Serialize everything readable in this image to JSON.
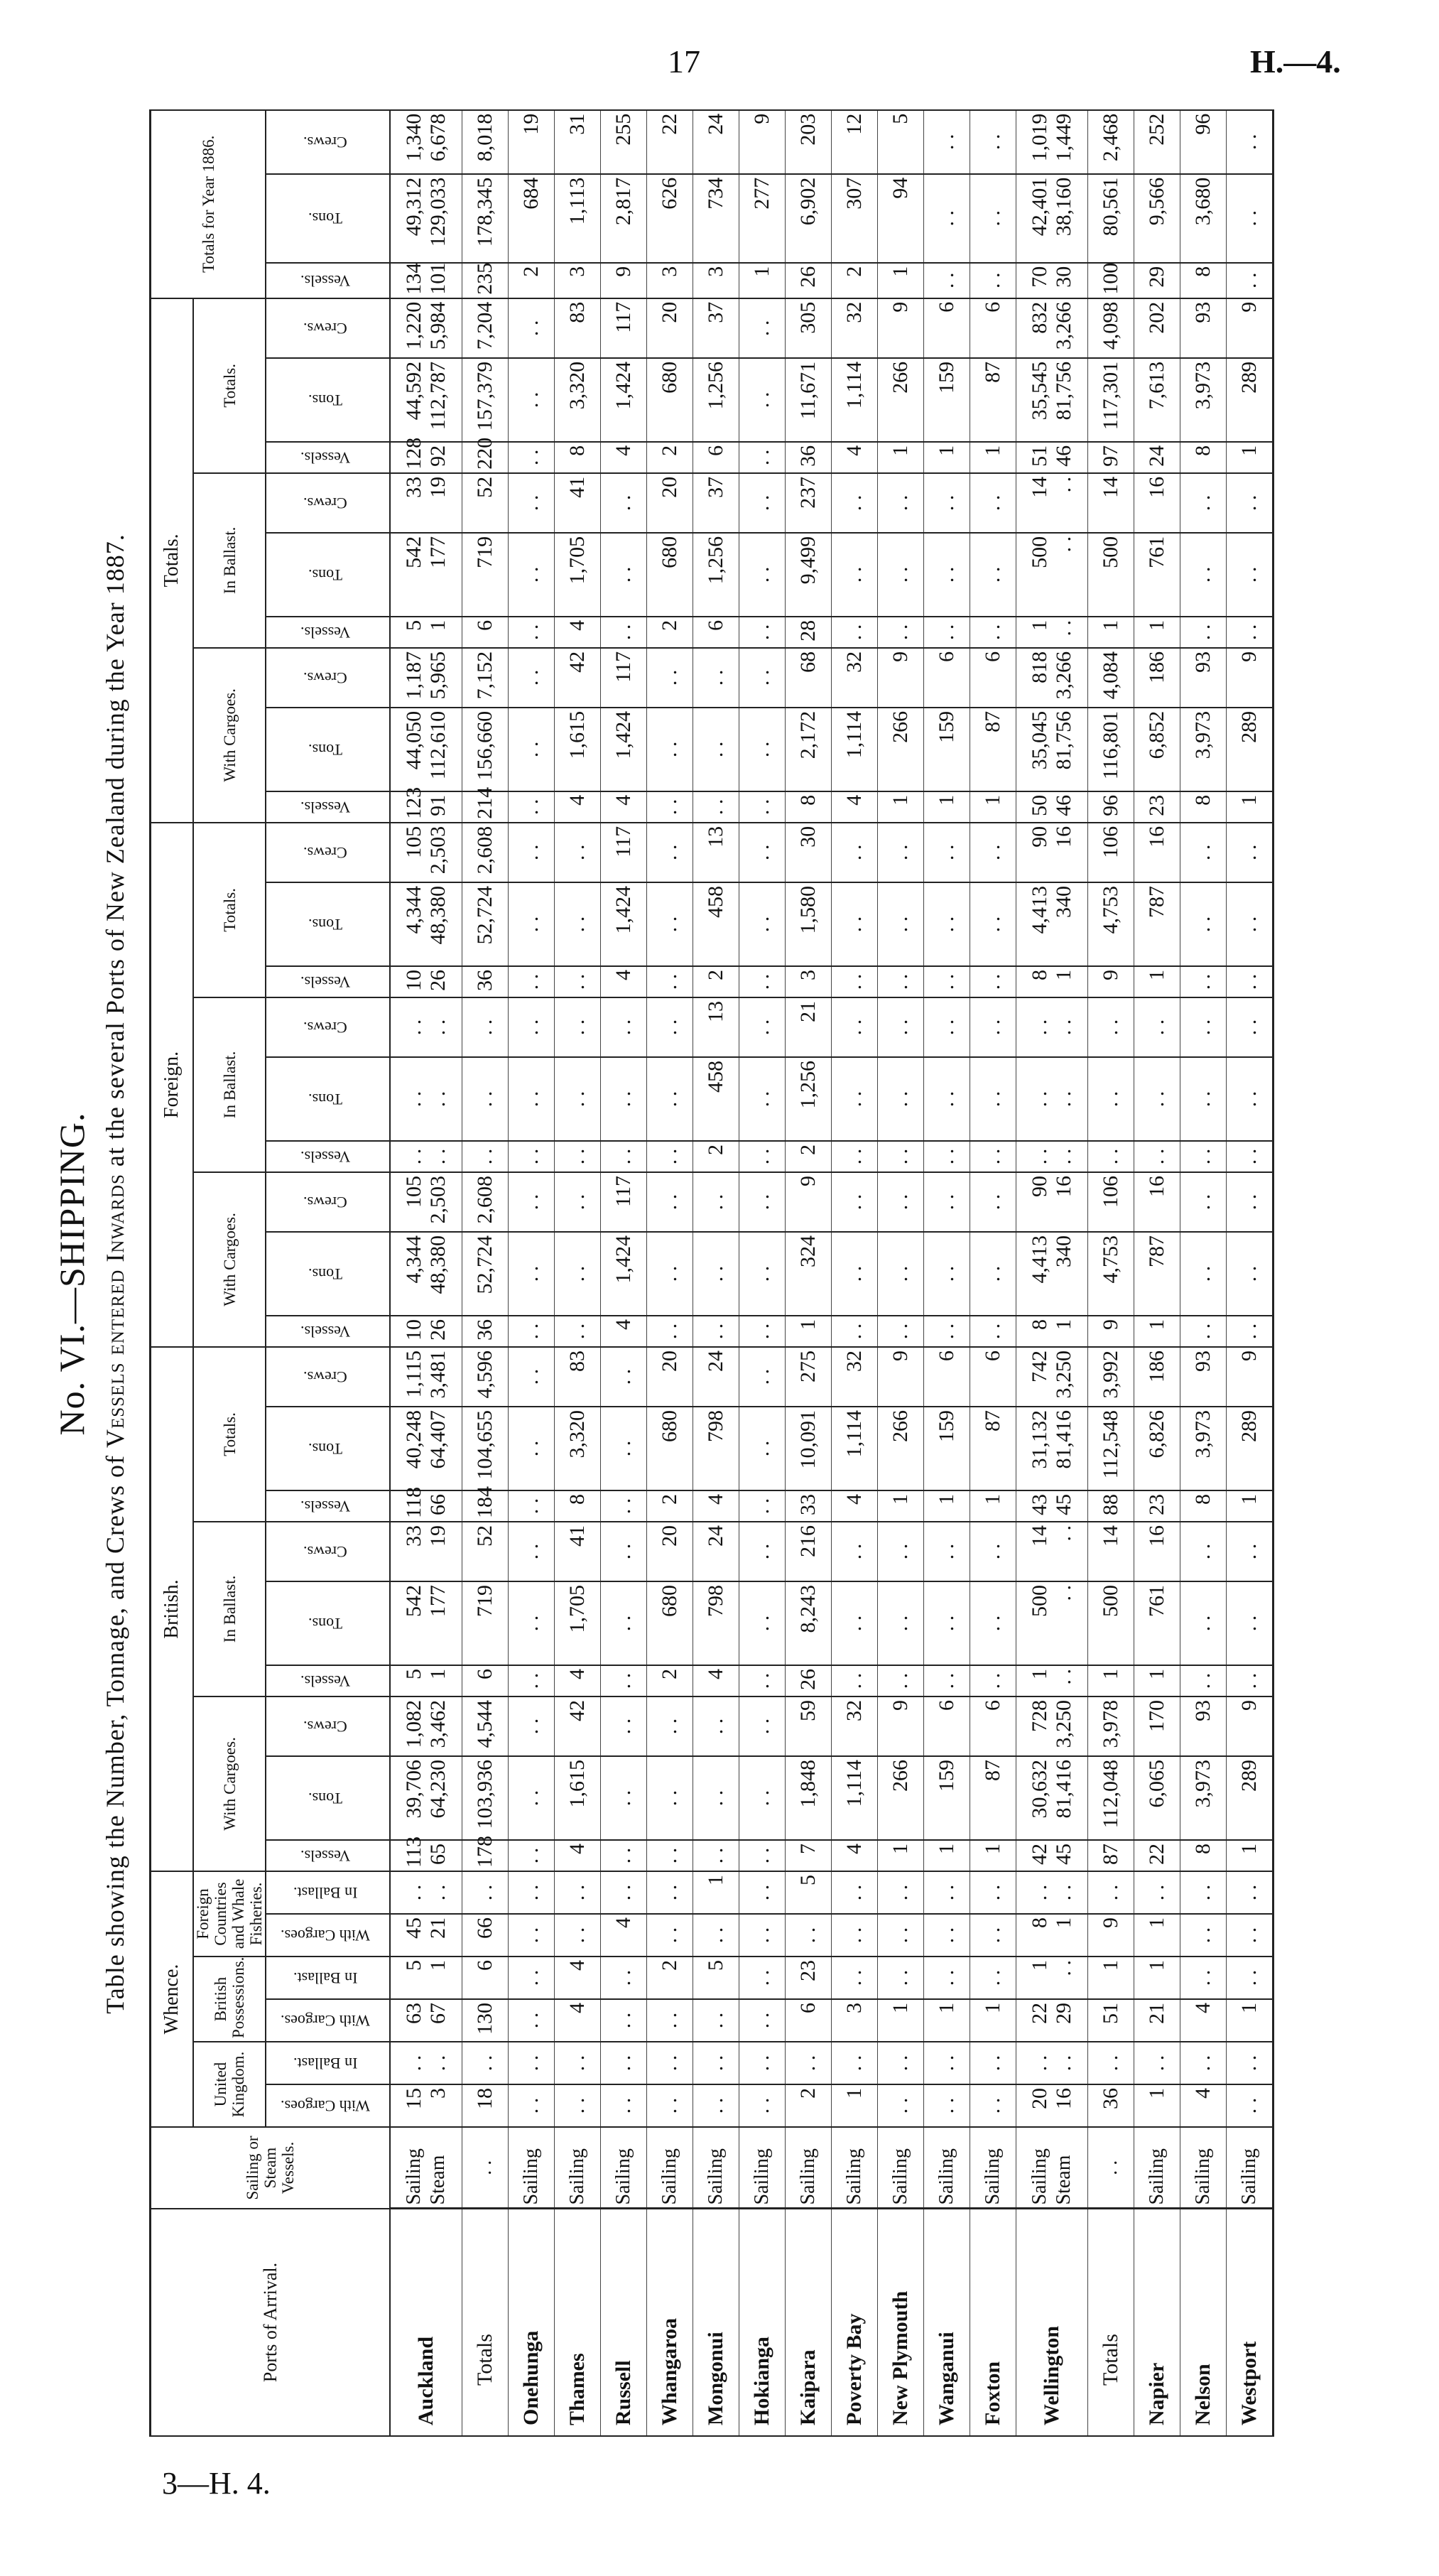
{
  "page": {
    "number": "17",
    "reference": "H.—4.",
    "footer_reference": "3—H. 4."
  },
  "title": "No. VI.—SHIPPING.",
  "subtitle": {
    "prefix": "Table showing the Number, Tonnage, and Crews of ",
    "smallcaps": "Vessels entered Inwards",
    "suffix": " at the several Ports of New Zealand during the Year 1887."
  },
  "headers": {
    "ports": "Ports of Arrival.",
    "vessel_type": "Sailing or Steam Vessels.",
    "whence": "Whence.",
    "whence_groups": [
      "United Kingdom.",
      "British Possessions.",
      "Foreign Countries and Whale Fisheries."
    ],
    "whence_cols": [
      "With Cargoes.",
      "In Ballast."
    ],
    "sections": [
      "British.",
      "Foreign.",
      "Totals."
    ],
    "subsections": [
      "With Cargoes.",
      "In Ballast.",
      "Totals."
    ],
    "cols": [
      "Vessels.",
      "Tons.",
      "Crews."
    ],
    "year_totals": "Totals for Year 1886."
  },
  "rows": [
    {
      "port": "Auckland",
      "type": "Sailing\nSteam",
      "values": [
        "15\n3",
        ". .\n. .",
        "63\n67",
        "5\n1",
        "45\n21",
        ". .\n. .",
        "113\n65",
        "39,706\n64,230",
        "1,082\n3,462",
        "5\n1",
        "542\n177",
        "33\n19",
        "118\n66",
        "40,248\n64,407",
        "1,115\n3,481",
        "10\n26",
        "4,344\n48,380",
        "105\n2,503",
        ". .\n. .",
        ". .\n. .",
        ". .\n. .",
        "10\n26",
        "4,344\n48,380",
        "105\n2,503",
        "123\n91",
        "44,050\n112,610",
        "1,187\n5,965",
        "5\n1",
        "542\n177",
        "33\n19",
        "128\n92",
        "44,592\n112,787",
        "1,220\n5,984",
        "134\n101",
        "49,312\n129,033",
        "1,340\n6,678"
      ]
    },
    {
      "port": "Totals",
      "type": ". .",
      "total": true,
      "values": [
        "18",
        ". .",
        "130",
        "6",
        "66",
        ". .",
        "178",
        "103,936",
        "4,544",
        "6",
        "719",
        "52",
        "184",
        "104,655",
        "4,596",
        "36",
        "52,724",
        "2,608",
        ". .",
        ". .",
        ". .",
        "36",
        "52,724",
        "2,608",
        "214",
        "156,660",
        "7,152",
        "6",
        "719",
        "52",
        "220",
        "157,379",
        "7,204",
        "235",
        "178,345",
        "8,018"
      ]
    },
    {
      "port": "Onehunga",
      "type": "Sailing",
      "values": [
        ". .",
        ". .",
        ". .",
        ". .",
        ". .",
        ". .",
        ". .",
        ". .",
        ". .",
        ". .",
        ". .",
        ". .",
        ". .",
        ". .",
        ". .",
        ". .",
        ". .",
        ". .",
        ". .",
        ". .",
        ". .",
        ". .",
        ". .",
        ". .",
        ". .",
        ". .",
        ". .",
        ". .",
        ". .",
        ". .",
        ". .",
        ". .",
        ". .",
        "2",
        "684",
        "19"
      ]
    },
    {
      "port": "Thames",
      "type": "Sailing",
      "values": [
        ". .",
        ". .",
        "4",
        "4",
        ". .",
        ". .",
        "4",
        "1,615",
        "42",
        "4",
        "1,705",
        "41",
        "8",
        "3,320",
        "83",
        ". .",
        ". .",
        ". .",
        ". .",
        ". .",
        ". .",
        ". .",
        ". .",
        ". .",
        "4",
        "1,615",
        "42",
        "4",
        "1,705",
        "41",
        "8",
        "3,320",
        "83",
        "3",
        "1,113",
        "31"
      ]
    },
    {
      "port": "Russell",
      "type": "Sailing",
      "values": [
        ". .",
        ". .",
        ". .",
        ". .",
        "4",
        ". .",
        ". .",
        ". .",
        ". .",
        ". .",
        ". .",
        ". .",
        ". .",
        ". .",
        ". .",
        "4",
        "1,424",
        "117",
        ". .",
        ". .",
        ". .",
        "4",
        "1,424",
        "117",
        "4",
        "1,424",
        "117",
        ". .",
        ". .",
        ". .",
        "4",
        "1,424",
        "117",
        "9",
        "2,817",
        "255"
      ]
    },
    {
      "port": "Whangaroa",
      "type": "Sailing",
      "values": [
        ". .",
        ". .",
        ". .",
        "2",
        ". .",
        ". .",
        ". .",
        ". .",
        ". .",
        "2",
        "680",
        "20",
        "2",
        "680",
        "20",
        ". .",
        ". .",
        ". .",
        ". .",
        ". .",
        ". .",
        ". .",
        ". .",
        ". .",
        ". .",
        ". .",
        ". .",
        "2",
        "680",
        "20",
        "2",
        "680",
        "20",
        "3",
        "626",
        "22"
      ]
    },
    {
      "port": "Mongonui",
      "type": "Sailing",
      "values": [
        ". .",
        ". .",
        ". .",
        "5",
        ". .",
        "1",
        ". .",
        ". .",
        ". .",
        "4",
        "798",
        "24",
        "4",
        "798",
        "24",
        ". .",
        ". .",
        ". .",
        "2",
        "458",
        "13",
        "2",
        "458",
        "13",
        ". .",
        ". .",
        ". .",
        "6",
        "1,256",
        "37",
        "6",
        "1,256",
        "37",
        "3",
        "734",
        "24"
      ]
    },
    {
      "port": "Hokianga",
      "type": "Sailing",
      "values": [
        ". .",
        ". .",
        ". .",
        ". .",
        ". .",
        ". .",
        ". .",
        ". .",
        ". .",
        ". .",
        ". .",
        ". .",
        ". .",
        ". .",
        ". .",
        ". .",
        ". .",
        ". .",
        ". .",
        ". .",
        ". .",
        ". .",
        ". .",
        ". .",
        ". .",
        ". .",
        ". .",
        ". .",
        ". .",
        ". .",
        ". .",
        ". .",
        ". .",
        "1",
        "277",
        "9"
      ]
    },
    {
      "port": "Kaipara",
      "type": "Sailing",
      "values": [
        "2",
        ". .",
        "6",
        "23",
        ". .",
        "5",
        "7",
        "1,848",
        "59",
        "26",
        "8,243",
        "216",
        "33",
        "10,091",
        "275",
        "1",
        "324",
        "9",
        "2",
        "1,256",
        "21",
        "3",
        "1,580",
        "30",
        "8",
        "2,172",
        "68",
        "28",
        "9,499",
        "237",
        "36",
        "11,671",
        "305",
        "26",
        "6,902",
        "203"
      ]
    },
    {
      "port": "Poverty Bay",
      "type": "Sailing",
      "values": [
        "1",
        ". .",
        "3",
        ". .",
        ". .",
        ". .",
        "4",
        "1,114",
        "32",
        ". .",
        ". .",
        ". .",
        "4",
        "1,114",
        "32",
        ". .",
        ". .",
        ". .",
        ". .",
        ". .",
        ". .",
        ". .",
        ". .",
        ". .",
        "4",
        "1,114",
        "32",
        ". .",
        ". .",
        ". .",
        "4",
        "1,114",
        "32",
        "2",
        "307",
        "12"
      ]
    },
    {
      "port": "New Plymouth",
      "type": "Sailing",
      "values": [
        ". .",
        ". .",
        "1",
        ". .",
        ". .",
        ". .",
        "1",
        "266",
        "9",
        ". .",
        ". .",
        ". .",
        "1",
        "266",
        "9",
        ". .",
        ". .",
        ". .",
        ". .",
        ". .",
        ". .",
        ". .",
        ". .",
        ". .",
        "1",
        "266",
        "9",
        ". .",
        ". .",
        ". .",
        "1",
        "266",
        "9",
        "1",
        "94",
        "5"
      ]
    },
    {
      "port": "Wanganui",
      "type": "Sailing",
      "values": [
        ". .",
        ". .",
        "1",
        ". .",
        ". .",
        ". .",
        "1",
        "159",
        "6",
        ". .",
        ". .",
        ". .",
        "1",
        "159",
        "6",
        ". .",
        ". .",
        ". .",
        ". .",
        ". .",
        ". .",
        ". .",
        ". .",
        ". .",
        "1",
        "159",
        "6",
        ". .",
        ". .",
        ". .",
        "1",
        "159",
        "6",
        ". .",
        ". .",
        ". ."
      ]
    },
    {
      "port": "Foxton",
      "type": "Sailing",
      "values": [
        ". .",
        ". .",
        "1",
        ". .",
        ". .",
        ". .",
        "1",
        "87",
        "6",
        ". .",
        ". .",
        ". .",
        "1",
        "87",
        "6",
        ". .",
        ". .",
        ". .",
        ". .",
        ". .",
        ". .",
        ". .",
        ". .",
        ". .",
        "1",
        "87",
        "6",
        ". .",
        ". .",
        ". .",
        "1",
        "87",
        "6",
        ". .",
        ". .",
        ". ."
      ]
    },
    {
      "port": "Wellington",
      "type": "Sailing\nSteam",
      "values": [
        "20\n16",
        ". .\n. .",
        "22\n29",
        "1\n. .",
        "8\n1",
        ". .\n. .",
        "42\n45",
        "30,632\n81,416",
        "728\n3,250",
        "1\n. .",
        "500\n. .",
        "14\n. .",
        "43\n45",
        "31,132\n81,416",
        "742\n3,250",
        "8\n1",
        "4,413\n340",
        "90\n16",
        ". .\n. .",
        ". .\n. .",
        ". .\n. .",
        "8\n1",
        "4,413\n340",
        "90\n16",
        "50\n46",
        "35,045\n81,756",
        "818\n3,266",
        "1\n. .",
        "500\n. .",
        "14\n. .",
        "51\n46",
        "35,545\n81,756",
        "832\n3,266",
        "70\n30",
        "42,401\n38,160",
        "1,019\n1,449"
      ]
    },
    {
      "port": "Totals",
      "type": ". .",
      "total": true,
      "values": [
        "36",
        ". .",
        "51",
        "1",
        "9",
        ". .",
        "87",
        "112,048",
        "3,978",
        "1",
        "500",
        "14",
        "88",
        "112,548",
        "3,992",
        "9",
        "4,753",
        "106",
        ". .",
        ". .",
        ". .",
        "9",
        "4,753",
        "106",
        "96",
        "116,801",
        "4,084",
        "1",
        "500",
        "14",
        "97",
        "117,301",
        "4,098",
        "100",
        "80,561",
        "2,468"
      ]
    },
    {
      "port": "Napier",
      "type": "Sailing",
      "values": [
        "1",
        ". .",
        "21",
        "1",
        "1",
        ". .",
        "22",
        "6,065",
        "170",
        "1",
        "761",
        "16",
        "23",
        "6,826",
        "186",
        "1",
        "787",
        "16",
        ". .",
        ". .",
        ". .",
        "1",
        "787",
        "16",
        "23",
        "6,852",
        "186",
        "1",
        "761",
        "16",
        "24",
        "7,613",
        "202",
        "29",
        "9,566",
        "252"
      ]
    },
    {
      "port": "Nelson",
      "type": "Sailing",
      "values": [
        "4",
        ". .",
        "4",
        ". .",
        ". .",
        ". .",
        "8",
        "3,973",
        "93",
        ". .",
        ". .",
        ". .",
        "8",
        "3,973",
        "93",
        ". .",
        ". .",
        ". .",
        ". .",
        ". .",
        ". .",
        ". .",
        ". .",
        ". .",
        "8",
        "3,973",
        "93",
        ". .",
        ". .",
        ". .",
        "8",
        "3,973",
        "93",
        "8",
        "3,680",
        "96"
      ]
    },
    {
      "port": "Westport",
      "type": "Sailing",
      "values": [
        ". .",
        ". .",
        "1",
        ". .",
        ". .",
        ". .",
        "1",
        "289",
        "9",
        ". .",
        ". .",
        ". .",
        "1",
        "289",
        "9",
        ". .",
        ". .",
        ". .",
        ". .",
        ". .",
        ". .",
        ". .",
        ". .",
        ". .",
        "1",
        "289",
        "9",
        ". .",
        ". .",
        ". .",
        "1",
        "289",
        "9",
        ". .",
        ". .",
        ". ."
      ]
    }
  ]
}
